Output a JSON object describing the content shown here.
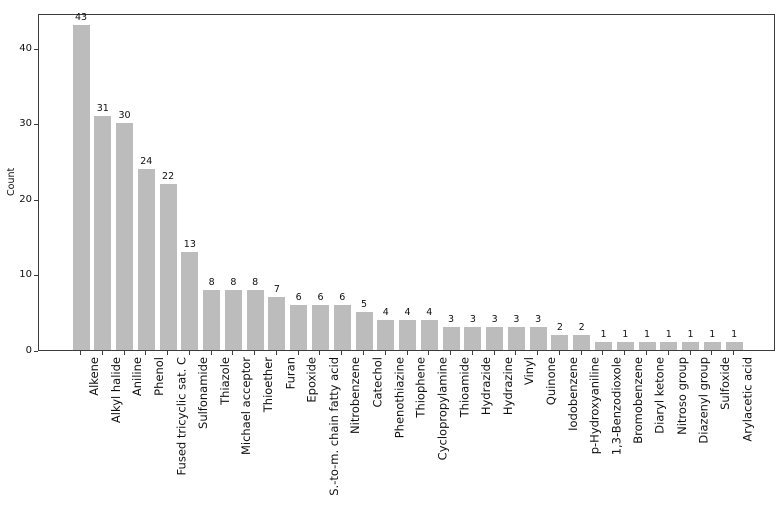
{
  "chart_data": {
    "type": "bar",
    "title": "",
    "xlabel": "",
    "ylabel": "Count",
    "categories": [
      "Alkene",
      "Alkyl halide",
      "Aniline",
      "Phenol",
      "Fused tricyclic sat. C",
      "Sulfonamide",
      "Thiazole",
      "Michael acceptor",
      "Thioether",
      "Furan",
      "Epoxide",
      "S.-to-m. chain fatty acid",
      "Nitrobenzene",
      "Catechol",
      "Phenothiazine",
      "Thiophene",
      "Cyclopropylamine",
      "Thioamide",
      "Hydrazide",
      "Hydrazine",
      "Vinyl",
      "Quinone",
      "Iodobenzene",
      "p-Hydroxyaniline",
      "1,3-Benzodioxole",
      "Bromobenzene",
      "Diaryl ketone",
      "Nitroso group",
      "Diazenyl group",
      "Sulfoxide",
      "Arylacetic acid"
    ],
    "values": [
      43,
      31,
      30,
      24,
      22,
      13,
      8,
      8,
      8,
      7,
      6,
      6,
      6,
      5,
      4,
      4,
      4,
      3,
      3,
      3,
      3,
      3,
      2,
      2,
      1,
      1,
      1,
      1,
      1,
      1,
      1
    ],
    "bar_value_labels": [
      "43",
      "31",
      "30",
      "24",
      "22",
      "13",
      "8",
      "8",
      "8",
      "7",
      "6",
      "6",
      "6",
      "5",
      "4",
      "4",
      "4",
      "3",
      "3",
      "3",
      "3",
      "3",
      "2",
      "2",
      "1",
      "1",
      "1",
      "1",
      "1",
      "1",
      "1"
    ],
    "yticks": [
      0,
      10,
      20,
      30,
      40
    ],
    "ylim": [
      0,
      44.6
    ],
    "grid": false,
    "legend": null,
    "bar_color": "#bcbcbc",
    "spine_color": "#3c3c3c",
    "text_color": "#111111",
    "background_color": "#ffffff"
  }
}
